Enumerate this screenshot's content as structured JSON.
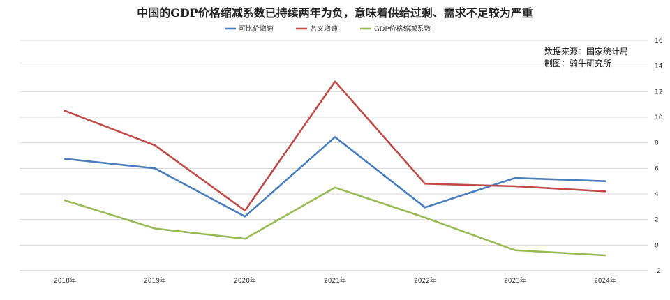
{
  "chart_data": {
    "type": "line",
    "title": "中国的GDP价格缩减系数已持续两年为负，意味着供给过剩、需求不足较为严重",
    "categories": [
      "2018年",
      "2019年",
      "2020年",
      "2021年",
      "2022年",
      "2023年",
      "2024年"
    ],
    "series": [
      {
        "name": "可比价增速",
        "color": "#4a7ebb",
        "values": [
          6.75,
          6.0,
          2.24,
          8.45,
          2.95,
          5.25,
          5.0
        ]
      },
      {
        "name": "名义增速",
        "color": "#be4b48",
        "values": [
          10.5,
          7.8,
          2.7,
          12.8,
          4.8,
          4.6,
          4.2
        ]
      },
      {
        "name": "GDP价格缩减系数",
        "color": "#98b954",
        "values": [
          3.5,
          1.3,
          0.5,
          4.5,
          2.15,
          -0.4,
          -0.8
        ]
      }
    ],
    "ylim": [
      -2,
      16
    ],
    "yticks": [
      -2,
      0,
      2,
      4,
      6,
      8,
      10,
      12,
      14,
      16
    ],
    "y_axis_position": "right",
    "grid": true,
    "legend_position": "top-center",
    "annotations": [
      "数据来源：国家统计局",
      "制图：骑牛研究所"
    ]
  }
}
